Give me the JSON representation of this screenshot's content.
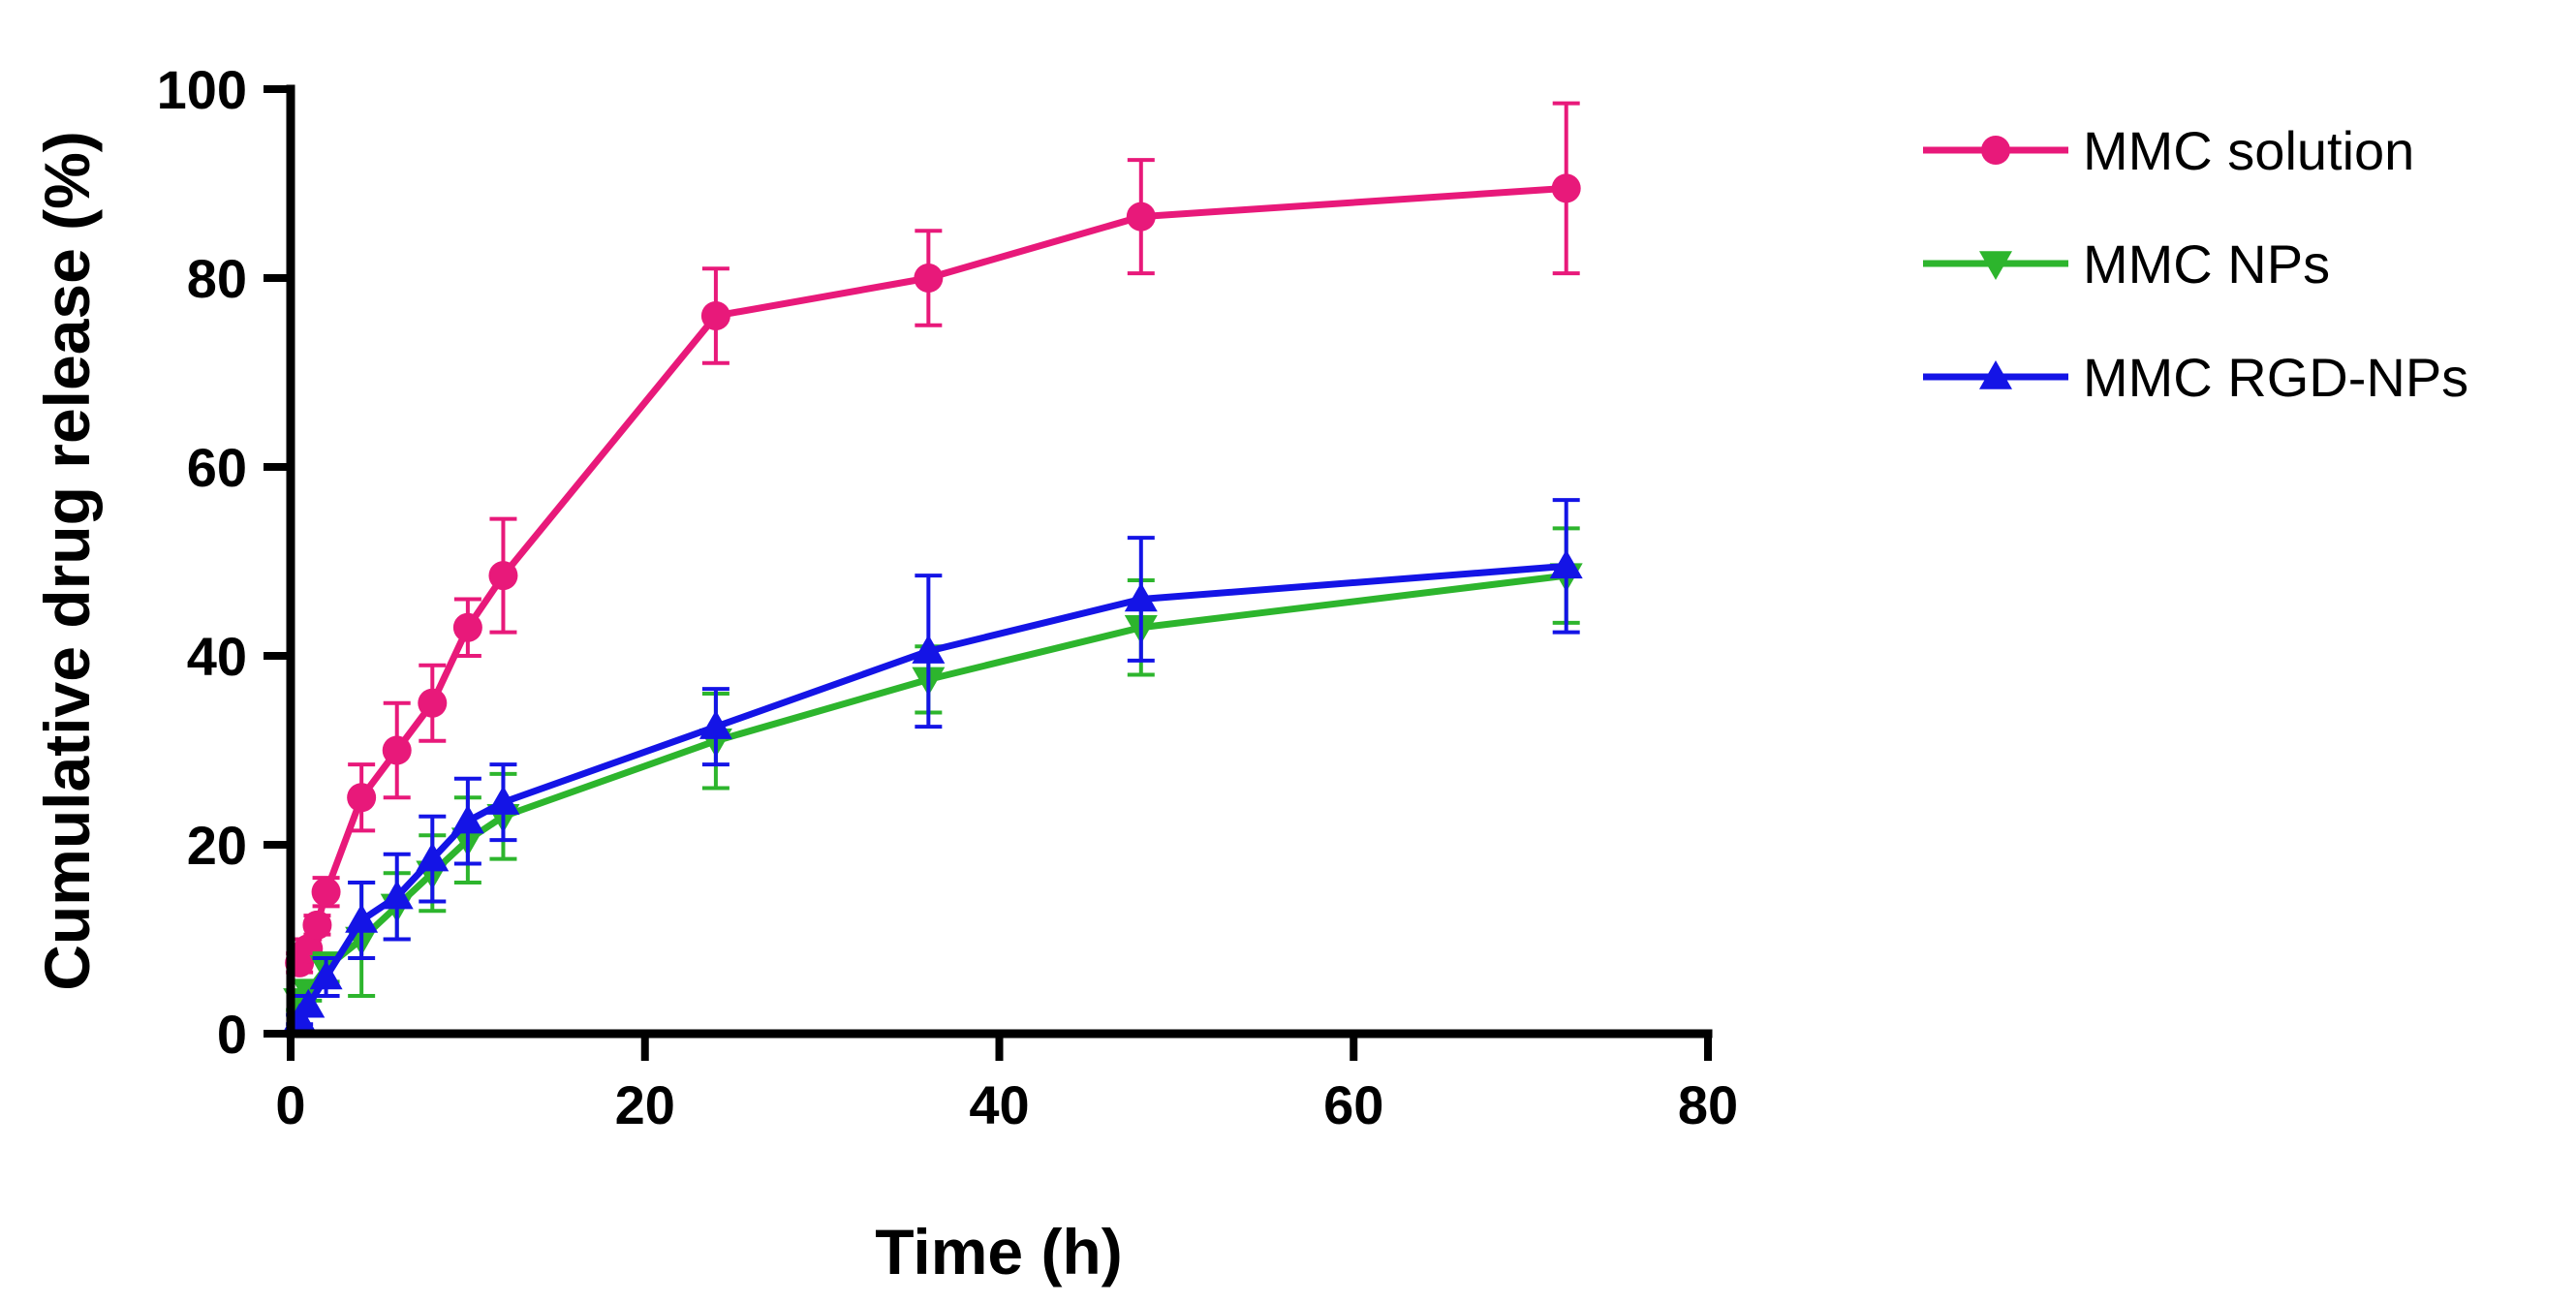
{
  "chart_data": {
    "type": "line",
    "title": "",
    "xlabel": "Time (h)",
    "ylabel": "Cumulative drug release (%)",
    "xlim": [
      0,
      80
    ],
    "ylim": [
      0,
      100
    ],
    "xticks": [
      0,
      20,
      40,
      60,
      80
    ],
    "yticks": [
      0,
      20,
      40,
      60,
      80,
      100
    ],
    "grid": false,
    "legend_position": "right",
    "series": [
      {
        "name": "MMC solution",
        "color": "#e8197a",
        "marker": "circle",
        "x": [
          0.5,
          1,
          1.5,
          2,
          4,
          6,
          8,
          10,
          12,
          24,
          36,
          48,
          72
        ],
        "y": [
          7.5,
          9,
          11.5,
          15,
          25,
          30,
          35,
          43,
          48.5,
          76,
          80,
          86.5,
          89.5
        ],
        "err": [
          1,
          1,
          1,
          1.5,
          3.5,
          5,
          4,
          3,
          6,
          5,
          5,
          6,
          9
        ]
      },
      {
        "name": "MMC NPs",
        "color": "#2db52d",
        "marker": "triangle-down",
        "x": [
          0.5,
          1,
          2,
          4,
          6,
          8,
          10,
          12,
          24,
          36,
          48,
          72
        ],
        "y": [
          3.5,
          4.5,
          7,
          10,
          13.5,
          17,
          20.5,
          23,
          31,
          37.5,
          43,
          48.5
        ],
        "err": [
          1,
          1,
          1.5,
          6,
          3.5,
          4,
          4.5,
          4.5,
          5,
          3.5,
          5,
          5
        ]
      },
      {
        "name": "MMC RGD-NPs",
        "color": "#1414e6",
        "marker": "triangle-up",
        "x": [
          0.5,
          1,
          2,
          4,
          6,
          8,
          10,
          12,
          24,
          36,
          48,
          72
        ],
        "y": [
          1.5,
          3,
          6,
          12,
          14.5,
          18.5,
          22.5,
          24.5,
          32.5,
          40.5,
          46,
          49.5
        ],
        "err": [
          0.5,
          1,
          2,
          4,
          4.5,
          4.5,
          4.5,
          4,
          4,
          8,
          6.5,
          7
        ]
      }
    ]
  }
}
